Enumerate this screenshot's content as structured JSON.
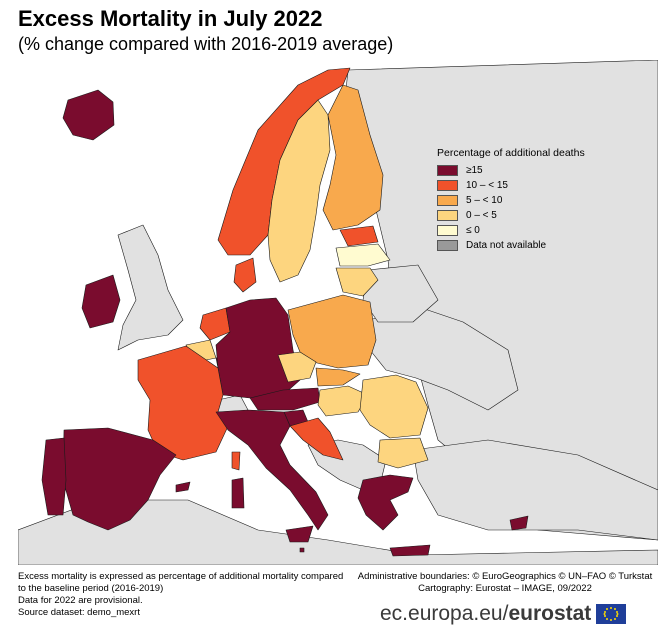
{
  "title": "Excess Mortality in July 2022",
  "subtitle": "(% change compared with 2016-2019 average)",
  "legend": {
    "title": "Percentage of additional deaths",
    "items": [
      {
        "label": "≥15",
        "color": "#7a0c2e"
      },
      {
        "label": "10 – < 15",
        "color": "#f0522b"
      },
      {
        "label": "5 – < 10",
        "color": "#f8a94d"
      },
      {
        "label": "0 – < 5",
        "color": "#fdd57f"
      },
      {
        "label": "≤ 0",
        "color": "#fffbd0"
      },
      {
        "label": "Data not available",
        "color": "#999999"
      }
    ]
  },
  "colors": {
    "non_eu": "#e1e1e1",
    "sea": "#ffffff",
    "border": "#1a1a1a"
  },
  "notes_left": [
    "Excess mortality is expressed as percentage of additional mortality compared",
    "to the baseline period (2016-2019)",
    "Data for 2022 are provisional.",
    "Source dataset: demo_mexrt"
  ],
  "notes_right": [
    "Administrative boundaries: © EuroGeographics © UN–FAO © Turkstat",
    "Cartography: Eurostat – IMAGE, 09/2022"
  ],
  "brand": {
    "domain": "ec.europa.eu/",
    "name": "eurostat"
  }
}
